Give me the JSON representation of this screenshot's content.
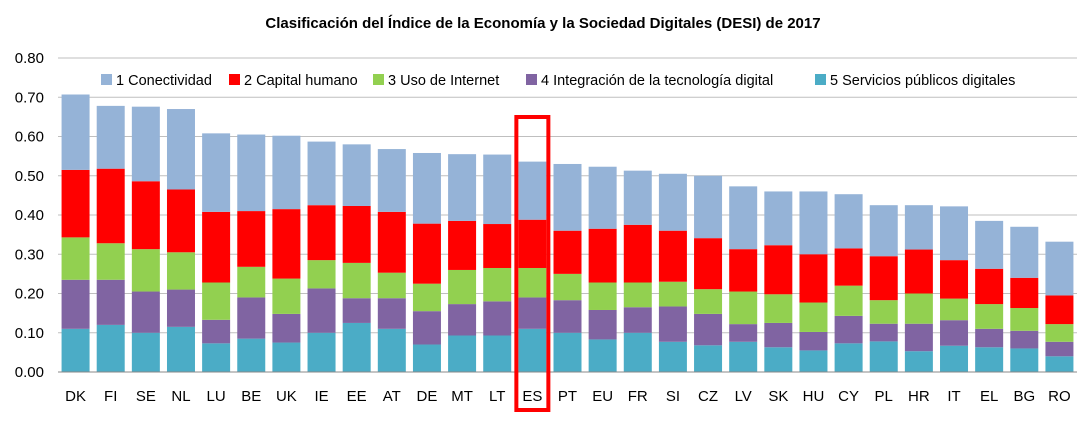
{
  "chart_data": {
    "type": "bar",
    "stacked": true,
    "title": "Clasificación del Índice de la Economía y la Sociedad Digitales  (DESI) de 2017",
    "xlabel": "",
    "ylabel": "",
    "ylim": [
      0,
      0.8
    ],
    "yticks": [
      "0.00",
      "0.10",
      "0.20",
      "0.30",
      "0.40",
      "0.50",
      "0.60",
      "0.70",
      "0.80"
    ],
    "grid": true,
    "legend_position": "top-right",
    "highlight_category": "ES",
    "highlight_color": "#ff0000",
    "categories": [
      "DK",
      "FI",
      "SE",
      "NL",
      "LU",
      "BE",
      "UK",
      "IE",
      "EE",
      "AT",
      "DE",
      "MT",
      "LT",
      "ES",
      "PT",
      "EU",
      "FR",
      "SI",
      "CZ",
      "LV",
      "SK",
      "HU",
      "CY",
      "PL",
      "HR",
      "IT",
      "EL",
      "BG",
      "RO"
    ],
    "series": [
      {
        "name": "5 Servicios públicos digitales",
        "color": "#4bacc6",
        "values": [
          0.11,
          0.12,
          0.1,
          0.115,
          0.073,
          0.085,
          0.075,
          0.1,
          0.125,
          0.11,
          0.07,
          0.093,
          0.093,
          0.11,
          0.1,
          0.083,
          0.1,
          0.077,
          0.068,
          0.077,
          0.063,
          0.055,
          0.073,
          0.078,
          0.053,
          0.067,
          0.063,
          0.06,
          0.04
        ]
      },
      {
        "name": "4 Integración de la tecnología digital",
        "color": "#8064a2",
        "values": [
          0.125,
          0.115,
          0.105,
          0.095,
          0.06,
          0.105,
          0.073,
          0.113,
          0.063,
          0.078,
          0.085,
          0.08,
          0.087,
          0.08,
          0.083,
          0.075,
          0.065,
          0.09,
          0.08,
          0.045,
          0.062,
          0.047,
          0.07,
          0.045,
          0.07,
          0.065,
          0.047,
          0.045,
          0.037
        ]
      },
      {
        "name": "3 Uso de Internet",
        "color": "#92d050",
        "values": [
          0.108,
          0.093,
          0.108,
          0.095,
          0.095,
          0.078,
          0.09,
          0.072,
          0.09,
          0.065,
          0.07,
          0.087,
          0.085,
          0.075,
          0.067,
          0.07,
          0.063,
          0.063,
          0.063,
          0.083,
          0.073,
          0.075,
          0.077,
          0.06,
          0.077,
          0.055,
          0.063,
          0.058,
          0.045
        ]
      },
      {
        "name": "2 Capital humano",
        "color": "#ff0000",
        "values": [
          0.172,
          0.19,
          0.173,
          0.16,
          0.18,
          0.142,
          0.177,
          0.14,
          0.145,
          0.155,
          0.153,
          0.125,
          0.112,
          0.123,
          0.11,
          0.137,
          0.147,
          0.13,
          0.13,
          0.108,
          0.125,
          0.123,
          0.095,
          0.112,
          0.112,
          0.098,
          0.09,
          0.077,
          0.073
        ]
      },
      {
        "name": "1 Conectividad",
        "color": "#95b3d7",
        "values": [
          0.192,
          0.16,
          0.19,
          0.205,
          0.2,
          0.195,
          0.187,
          0.162,
          0.157,
          0.16,
          0.18,
          0.17,
          0.177,
          0.148,
          0.17,
          0.158,
          0.138,
          0.145,
          0.159,
          0.16,
          0.137,
          0.16,
          0.138,
          0.13,
          0.113,
          0.137,
          0.122,
          0.13,
          0.137
        ]
      }
    ]
  }
}
